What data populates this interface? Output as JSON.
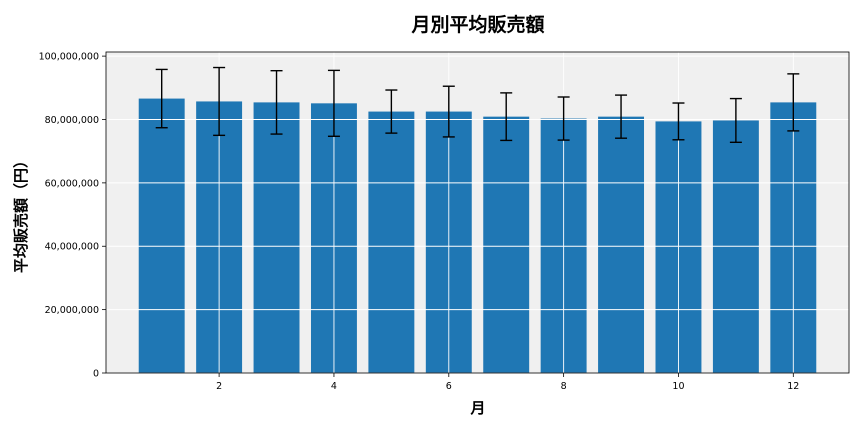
{
  "chart_data": {
    "type": "bar",
    "title": "月別平均販売額",
    "xlabel": "月",
    "ylabel": "平均販売額（円）",
    "x": [
      1,
      2,
      3,
      4,
      5,
      6,
      7,
      8,
      9,
      10,
      11,
      12
    ],
    "values": [
      86600000,
      85700000,
      85400000,
      85100000,
      82500000,
      82500000,
      80900000,
      80300000,
      80900000,
      79400000,
      79700000,
      85400000
    ],
    "errors": [
      9200000,
      10700000,
      10000000,
      10400000,
      6800000,
      8000000,
      7500000,
      6800000,
      6800000,
      5800000,
      6900000,
      9000000
    ],
    "xticks": [
      2,
      4,
      6,
      8,
      10,
      12
    ],
    "xtick_labels": [
      "2",
      "4",
      "6",
      "8",
      "10",
      "12"
    ],
    "yticks": [
      0,
      20000000,
      40000000,
      60000000,
      80000000,
      100000000
    ],
    "ytick_labels": [
      "0",
      "20,000,000",
      "40,000,000",
      "60,000,000",
      "80,000,000",
      "100,000,000"
    ],
    "xlim": [
      0.03,
      12.97
    ],
    "ylim": [
      0,
      101300000
    ],
    "grid": true,
    "colors": {
      "bar": "#1f77b4",
      "plot_bg": "#f0f0f0",
      "grid": "#ffffff",
      "error": "#000000"
    }
  }
}
